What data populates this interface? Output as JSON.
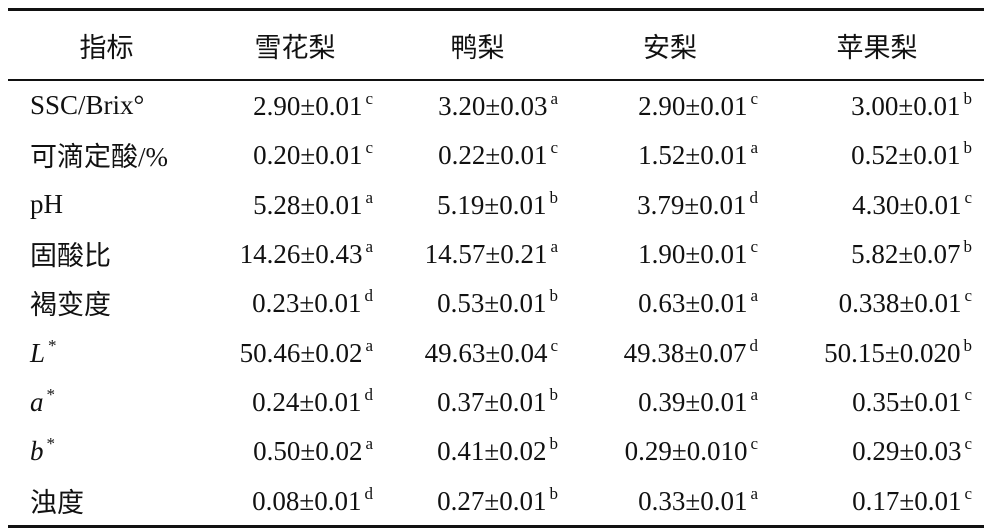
{
  "table": {
    "header": [
      "指标",
      "雪花梨",
      "鸭梨",
      "安梨",
      "苹果梨"
    ],
    "rows": [
      {
        "label": "SSC/Brix°",
        "cells": [
          {
            "value": "2.90±0.01",
            "sup": "c"
          },
          {
            "value": "3.20±0.03",
            "sup": "a"
          },
          {
            "value": "2.90±0.01",
            "sup": "c"
          },
          {
            "value": "3.00±0.01",
            "sup": "b"
          }
        ]
      },
      {
        "label": "可滴定酸/%",
        "cells": [
          {
            "value": "0.20±0.01",
            "sup": "c"
          },
          {
            "value": "0.22±0.01",
            "sup": "c"
          },
          {
            "value": "1.52±0.01",
            "sup": "a"
          },
          {
            "value": "0.52±0.01",
            "sup": "b"
          }
        ]
      },
      {
        "label": "pH",
        "cells": [
          {
            "value": "5.28±0.01",
            "sup": "a"
          },
          {
            "value": "5.19±0.01",
            "sup": "b"
          },
          {
            "value": "3.79±0.01",
            "sup": "d"
          },
          {
            "value": "4.30±0.01",
            "sup": "c"
          }
        ]
      },
      {
        "label": "固酸比",
        "cells": [
          {
            "value": "14.26±0.43",
            "sup": "a"
          },
          {
            "value": "14.57±0.21",
            "sup": "a"
          },
          {
            "value": "1.90±0.01",
            "sup": "c"
          },
          {
            "value": "5.82±0.07",
            "sup": "b"
          }
        ]
      },
      {
        "label": "褐变度",
        "cells": [
          {
            "value": "0.23±0.01",
            "sup": "d"
          },
          {
            "value": "0.53±0.01",
            "sup": "b"
          },
          {
            "value": "0.63±0.01",
            "sup": "a"
          },
          {
            "value": "0.338±0.01",
            "sup": "c"
          }
        ]
      },
      {
        "label": "L",
        "label_sup": "*",
        "cells": [
          {
            "value": "50.46±0.02",
            "sup": "a"
          },
          {
            "value": "49.63±0.04",
            "sup": "c"
          },
          {
            "value": "49.38±0.07",
            "sup": "d"
          },
          {
            "value": "50.15±0.020",
            "sup": "b"
          }
        ]
      },
      {
        "label": "a",
        "label_sup": "*",
        "cells": [
          {
            "value": "0.24±0.01",
            "sup": "d"
          },
          {
            "value": "0.37±0.01",
            "sup": "b"
          },
          {
            "value": "0.39±0.01",
            "sup": "a"
          },
          {
            "value": "0.35±0.01",
            "sup": "c"
          }
        ]
      },
      {
        "label": "b",
        "label_sup": "*",
        "cells": [
          {
            "value": "0.50±0.02",
            "sup": "a"
          },
          {
            "value": "0.41±0.02",
            "sup": "b"
          },
          {
            "value": "0.29±0.010",
            "sup": "c"
          },
          {
            "value": "0.29±0.03",
            "sup": "c"
          }
        ]
      },
      {
        "label": "浊度",
        "cells": [
          {
            "value": "0.08±0.01",
            "sup": "d"
          },
          {
            "value": "0.27±0.01",
            "sup": "b"
          },
          {
            "value": "0.33±0.01",
            "sup": "a"
          },
          {
            "value": "0.17±0.01",
            "sup": "c"
          }
        ]
      }
    ]
  }
}
